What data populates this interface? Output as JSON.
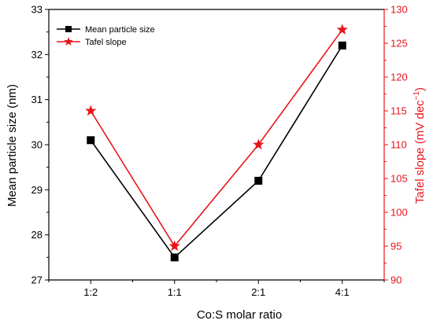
{
  "chart_data": {
    "type": "line",
    "categories": [
      "1:2",
      "1:1",
      "2:1",
      "4:1"
    ],
    "xlabel": "Co:S molar ratio",
    "y_left": {
      "label": "Mean particle size (nm)",
      "range": [
        27,
        33
      ],
      "ticks": [
        27,
        28,
        29,
        30,
        31,
        32,
        33
      ],
      "color": "#000000"
    },
    "y_right": {
      "label_main": "Tafel slope (mV dec",
      "label_sup": "−1",
      "label_close": ")",
      "range": [
        90,
        130
      ],
      "ticks": [
        90,
        95,
        100,
        105,
        110,
        115,
        120,
        125,
        130
      ],
      "color": "#e8141c"
    },
    "series": [
      {
        "name": "Mean particle size",
        "axis": "left",
        "marker": "square",
        "color": "#000000",
        "values": [
          30.1,
          27.5,
          29.2,
          32.2
        ]
      },
      {
        "name": "Tafel slope",
        "axis": "right",
        "marker": "star",
        "color": "#e8141c",
        "values": [
          115,
          95,
          110,
          127
        ]
      }
    ],
    "legend_position": "top-left",
    "grid": false
  }
}
